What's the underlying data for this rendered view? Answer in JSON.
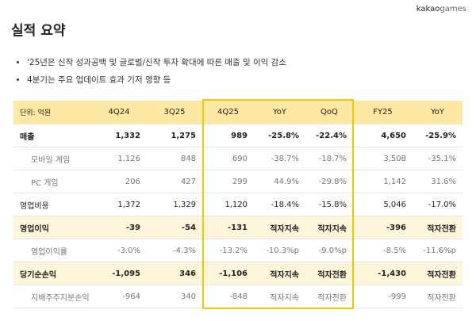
{
  "logo": {
    "brand": "kakao",
    "sub": "games"
  },
  "title": "실적 요약",
  "bullets": [
    "'25년은 신작 성과공백 및 글로벌/신작 투자 확대에 따른 매출 및 이익 감소",
    "4분기는 주요 업데이트 효과 기저 영향 등"
  ],
  "table": {
    "header": [
      "단위: 억원",
      "4Q24",
      "3Q25",
      "4Q25",
      "YoY",
      "QoQ",
      "FY25",
      "YoY"
    ],
    "rows": [
      [
        "매출",
        "1,332",
        "1,275",
        "989",
        "-25.8%",
        "-22.4%",
        "4,650",
        "-25.9%"
      ],
      [
        "모바일 게임",
        "1,126",
        "848",
        "690",
        "-38.7%",
        "-18.7%",
        "3,508",
        "-35.1%"
      ],
      [
        "PC 게임",
        "206",
        "427",
        "299",
        "44.9%",
        "-29.8%",
        "1,142",
        "31.6%"
      ],
      [
        "영업비용",
        "1,372",
        "1,329",
        "1,120",
        "-18.4%",
        "-15.8%",
        "5,046",
        "-17.0%"
      ],
      [
        "영업이익",
        "-39",
        "-54",
        "-131",
        "적자지속",
        "적자지속",
        "-396",
        "적자전환"
      ],
      [
        "영업이익률",
        "-3.0%",
        "-4.3%",
        "-13.2%",
        "-10.3%p",
        "-9.0%p",
        "-8.5%",
        "-11.6%p"
      ],
      [
        "당기순손익",
        "-1,095",
        "346",
        "-1,106",
        "적자지속",
        "적자전환",
        "-1,430",
        "적자전환"
      ],
      [
        "지배주주지분손익",
        "-964",
        "340",
        "-848",
        "적자지속",
        "적자전환",
        "-999",
        "적자전환"
      ]
    ]
  }
}
